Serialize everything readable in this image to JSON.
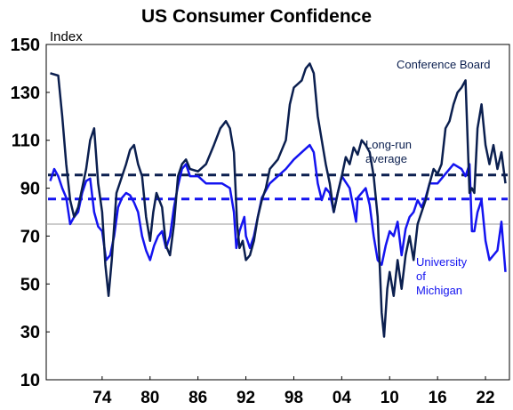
{
  "chart_data": {
    "type": "line",
    "title": "US Consumer Confidence",
    "ylabel": "Index",
    "xlabel": "",
    "ylim": [
      10,
      150
    ],
    "xlim": [
      1967.0,
      2025.0
    ],
    "y_ticks": [
      "150",
      "130",
      "110",
      "90",
      "70",
      "50",
      "30",
      "10"
    ],
    "x_ticks": [
      "74",
      "80",
      "86",
      "92",
      "98",
      "04",
      "10",
      "16",
      "22"
    ],
    "x_tick_years": [
      1974,
      1980,
      1986,
      1992,
      1998,
      2004,
      2010,
      2016,
      2022
    ],
    "grid": false,
    "colors": {
      "conference_board": "#0b1f4f",
      "university_of_michigan": "#1414f0",
      "reference_line": "#9a9a9a",
      "text": "#000000"
    },
    "reference_line": {
      "y": 75
    },
    "annotations": [
      {
        "text": "Conference Board",
        "color": "#0b1f4f"
      },
      {
        "text": "Long-run average",
        "color": "#0b1f4f"
      },
      {
        "text": "University of Michigan",
        "color": "#1414f0"
      }
    ],
    "averages": [
      {
        "series": "Conference Board",
        "y": 95.5
      },
      {
        "series": "University of Michigan",
        "y": 85.5
      }
    ],
    "series": [
      {
        "name": "Conference Board",
        "x": [
          1967.5,
          1968.5,
          1969.0,
          1969.5,
          1970.0,
          1970.5,
          1971.0,
          1971.5,
          1972.0,
          1972.5,
          1973.0,
          1973.5,
          1974.0,
          1974.4,
          1974.8,
          1975.2,
          1975.8,
          1976.5,
          1977.0,
          1977.5,
          1978.0,
          1978.5,
          1979.0,
          1979.5,
          1980.0,
          1980.4,
          1980.8,
          1981.5,
          1982.0,
          1982.5,
          1983.0,
          1983.5,
          1984.0,
          1984.5,
          1985.0,
          1986.0,
          1987.0,
          1988.0,
          1988.8,
          1989.5,
          1990.0,
          1990.5,
          1990.9,
          1991.2,
          1991.6,
          1992.0,
          1992.5,
          1993.0,
          1993.5,
          1994.0,
          1994.5,
          1995.0,
          1996.0,
          1997.0,
          1997.5,
          1998.0,
          1999.0,
          1999.5,
          2000.0,
          2000.5,
          2001.0,
          2001.5,
          2002.0,
          2002.5,
          2003.0,
          2003.5,
          2004.0,
          2004.5,
          2005.0,
          2005.5,
          2006.0,
          2006.5,
          2007.0,
          2007.5,
          2008.0,
          2008.5,
          2009.0,
          2009.3,
          2009.7,
          2010.0,
          2010.5,
          2011.0,
          2011.5,
          2012.0,
          2012.5,
          2013.0,
          2013.5,
          2014.0,
          2014.5,
          2015.0,
          2015.5,
          2016.0,
          2016.5,
          2017.0,
          2017.5,
          2018.0,
          2018.5,
          2019.0,
          2019.5,
          2020.0,
          2020.3,
          2020.6,
          2021.0,
          2021.5,
          2022.0,
          2022.5,
          2023.0,
          2023.5,
          2024.0,
          2024.5
        ],
        "values": [
          138,
          137,
          120,
          100,
          85,
          78,
          82,
          90,
          98,
          110,
          115,
          92,
          80,
          58,
          45,
          60,
          88,
          95,
          100,
          106,
          108,
          100,
          95,
          78,
          68,
          80,
          88,
          82,
          66,
          62,
          75,
          95,
          100,
          102,
          98,
          97,
          100,
          108,
          115,
          118,
          115,
          105,
          75,
          65,
          68,
          60,
          62,
          68,
          78,
          85,
          90,
          98,
          102,
          110,
          125,
          132,
          135,
          140,
          142,
          138,
          120,
          110,
          100,
          92,
          80,
          88,
          95,
          103,
          100,
          107,
          104,
          110,
          108,
          105,
          95,
          78,
          38,
          28,
          48,
          55,
          45,
          60,
          48,
          62,
          70,
          60,
          75,
          80,
          85,
          92,
          98,
          96,
          100,
          115,
          118,
          125,
          130,
          132,
          135,
          88,
          90,
          88,
          115,
          125,
          108,
          100,
          108,
          98,
          105,
          92
        ]
      },
      {
        "name": "University of Michigan",
        "x": [
          1967.5,
          1968.0,
          1968.5,
          1969.0,
          1969.5,
          1970.0,
          1970.5,
          1971.0,
          1971.5,
          1972.0,
          1972.5,
          1973.0,
          1973.5,
          1974.0,
          1974.5,
          1975.0,
          1975.5,
          1976.0,
          1976.5,
          1977.0,
          1977.5,
          1978.0,
          1978.5,
          1979.0,
          1979.5,
          1980.0,
          1980.5,
          1981.0,
          1981.5,
          1982.0,
          1982.5,
          1983.0,
          1983.5,
          1984.0,
          1984.5,
          1985.0,
          1986.0,
          1987.0,
          1988.0,
          1989.0,
          1990.0,
          1990.5,
          1990.8,
          1991.2,
          1991.8,
          1992.0,
          1992.5,
          1993.0,
          1993.5,
          1994.0,
          1995.0,
          1996.0,
          1997.0,
          1998.0,
          1999.0,
          2000.0,
          2000.5,
          2001.0,
          2001.5,
          2002.0,
          2002.5,
          2003.0,
          2003.5,
          2004.0,
          2005.0,
          2005.8,
          2006.0,
          2007.0,
          2007.5,
          2008.0,
          2008.5,
          2009.0,
          2009.5,
          2010.0,
          2010.5,
          2011.0,
          2011.5,
          2012.0,
          2012.5,
          2013.0,
          2013.5,
          2014.0,
          2014.5,
          2015.0,
          2016.0,
          2017.0,
          2018.0,
          2019.0,
          2019.5,
          2020.0,
          2020.3,
          2020.6,
          2021.0,
          2021.5,
          2022.0,
          2022.5,
          2023.0,
          2023.5,
          2024.0,
          2024.5
        ],
        "values": [
          93,
          98,
          95,
          90,
          86,
          75,
          78,
          80,
          88,
          93,
          94,
          80,
          74,
          72,
          60,
          62,
          70,
          82,
          86,
          88,
          87,
          84,
          80,
          70,
          64,
          60,
          66,
          70,
          72,
          65,
          70,
          82,
          91,
          98,
          100,
          95,
          95,
          92,
          92,
          92,
          90,
          80,
          65,
          72,
          78,
          70,
          65,
          70,
          78,
          86,
          92,
          95,
          98,
          102,
          105,
          108,
          105,
          92,
          85,
          90,
          88,
          80,
          88,
          95,
          90,
          76,
          86,
          90,
          83,
          70,
          60,
          58,
          66,
          72,
          70,
          76,
          62,
          73,
          78,
          80,
          85,
          82,
          86,
          92,
          92,
          96,
          100,
          98,
          95,
          100,
          72,
          72,
          80,
          85,
          68,
          60,
          62,
          64,
          76,
          55
        ]
      }
    ]
  }
}
